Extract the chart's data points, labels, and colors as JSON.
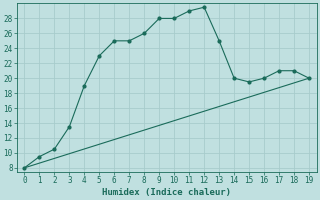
{
  "xlabel": "Humidex (Indice chaleur)",
  "x": [
    0,
    1,
    2,
    3,
    4,
    5,
    6,
    7,
    8,
    9,
    10,
    11,
    12,
    13,
    14,
    15,
    16,
    17,
    18,
    19
  ],
  "line1": [
    8,
    9.5,
    10.5,
    13.5,
    19,
    23,
    25,
    25,
    26,
    28,
    28,
    29,
    29.5,
    25,
    20,
    19.5,
    20,
    21,
    21,
    20
  ],
  "line2_x": [
    0,
    19
  ],
  "line2_y": [
    8,
    20
  ],
  "line_color": "#1a6b5a",
  "bg_color": "#c0e0e0",
  "grid_color": "#a8cccc",
  "ylim_min": 7.5,
  "ylim_max": 30,
  "xlim_min": -0.5,
  "xlim_max": 19.5,
  "yticks": [
    8,
    10,
    12,
    14,
    16,
    18,
    20,
    22,
    24,
    26,
    28
  ],
  "xticks": [
    0,
    1,
    2,
    3,
    4,
    5,
    6,
    7,
    8,
    9,
    10,
    11,
    12,
    13,
    14,
    15,
    16,
    17,
    18,
    19
  ],
  "tick_fontsize": 5.5,
  "xlabel_fontsize": 6.5
}
